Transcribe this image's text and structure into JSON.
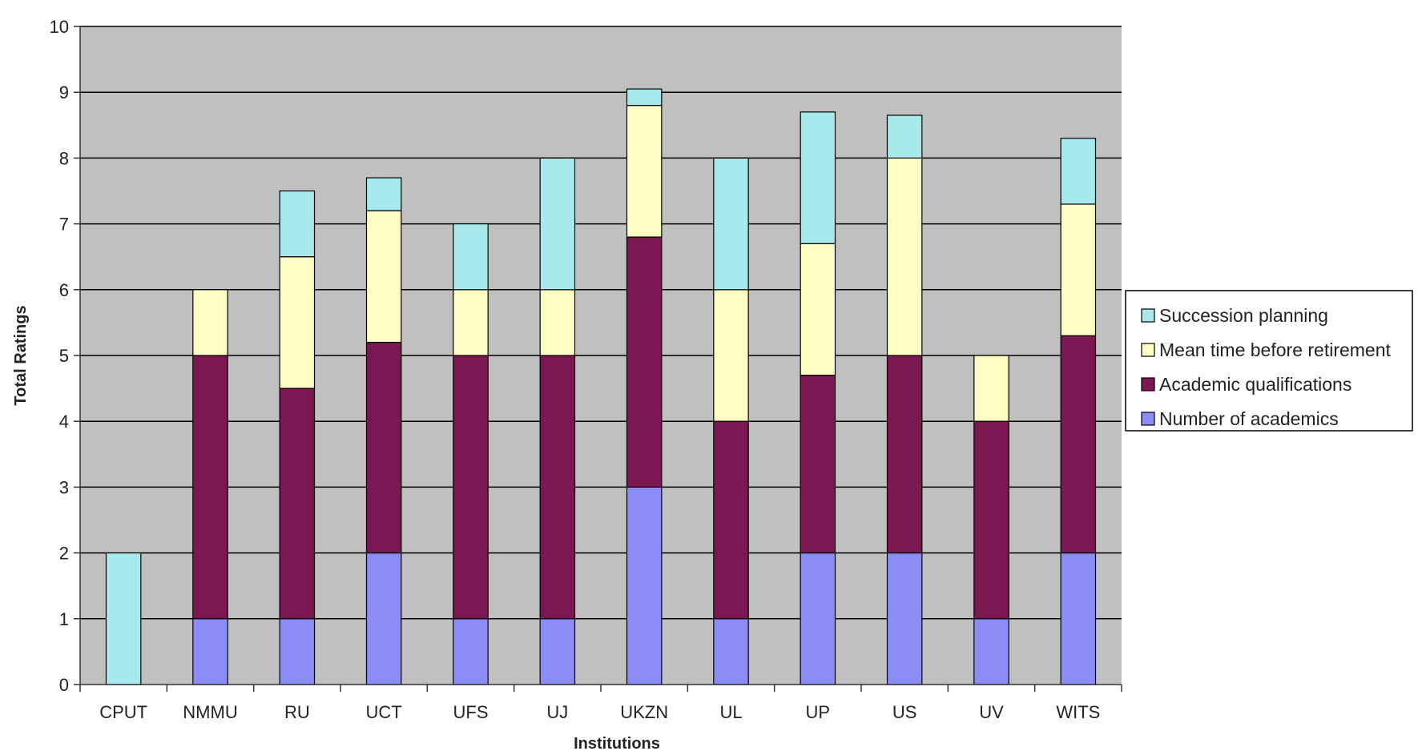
{
  "chart_data": {
    "type": "bar",
    "stacked": true,
    "title": "",
    "xlabel": "Institutions",
    "ylabel": "Total Ratings",
    "ylim": [
      0,
      10
    ],
    "yticks": [
      "0",
      "1",
      "2",
      "3",
      "4",
      "5",
      "6",
      "7",
      "8",
      "9",
      "10"
    ],
    "grid": true,
    "legend_position": "right",
    "colors": {
      "plot_background": "#c0c0c0",
      "gridline": "#000000",
      "number_of_academics": "#8c8cf7",
      "academic_qualifications": "#7b1852",
      "mean_time_before_retirement": "#fdfdc4",
      "succession_planning": "#a8e9ec"
    },
    "categories": [
      "CPUT",
      "NMMU",
      "RU",
      "UCT",
      "UFS",
      "UJ",
      "UKZN",
      "UL",
      "UP",
      "US",
      "UV",
      "WITS"
    ],
    "series": [
      {
        "name": "Number of academics",
        "color": "#8c8cf7",
        "values": [
          0,
          1,
          1,
          2,
          1,
          1,
          3,
          1,
          2,
          2,
          1,
          2
        ]
      },
      {
        "name": "Academic qualifications",
        "color": "#7b1852",
        "values": [
          0,
          4,
          3.5,
          3.2,
          4,
          4,
          3.8,
          3,
          2.7,
          3,
          3,
          3.3
        ]
      },
      {
        "name": "Mean time before retirement",
        "color": "#fdfdc4",
        "values": [
          0,
          1,
          2,
          2,
          1,
          1,
          2,
          2,
          2,
          3,
          1,
          2
        ]
      },
      {
        "name": "Succession planning",
        "color": "#a8e9ec",
        "values": [
          2,
          0,
          1,
          0.5,
          1,
          2,
          0.25,
          2,
          2,
          0.65,
          0,
          1
        ]
      }
    ],
    "legend_order": [
      "Succession planning",
      "Mean time before retirement",
      "Academic qualifications",
      "Number of academics"
    ]
  }
}
